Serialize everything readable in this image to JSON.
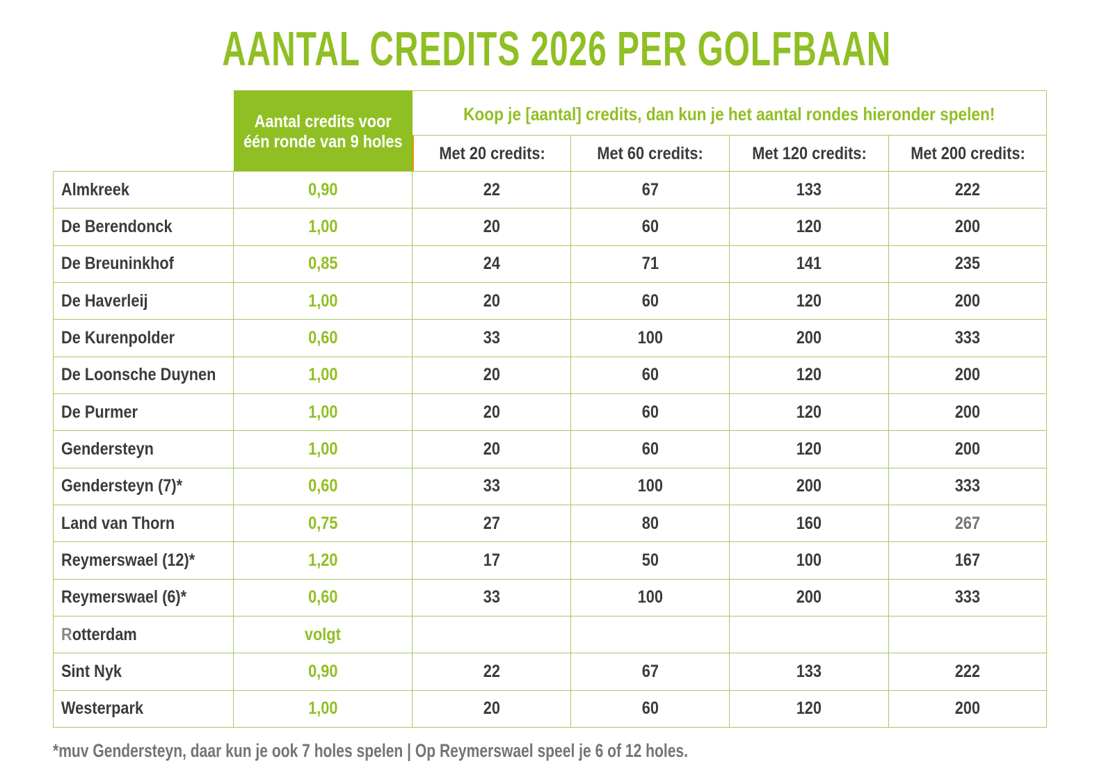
{
  "title": "AANTAL CREDITS 2026 PER GOLFBAAN",
  "colors": {
    "green": "#90BF24",
    "line": "#A6CA62",
    "dark": "#3B3B3A",
    "gray": "#757474",
    "gray_letter": "#878786",
    "gray_note": "#757474",
    "orange": "#F29100",
    "white": "#FFFFFF"
  },
  "table": {
    "credits_header_line1": "Aantal credits voor",
    "credits_header_line2": "één ronde van 9 holes",
    "span_header": "Koop je [aantal] credits, dan kun je het aantal rondes hieronder spelen!",
    "met_headers": [
      "Met 20 credits:",
      "Met 60 credits:",
      "Met 120 credits:",
      "Met 200 credits:"
    ],
    "rows": [
      {
        "name": "Almkreek",
        "credits": "0,90",
        "rounds": [
          "22",
          "67",
          "133",
          "222"
        ]
      },
      {
        "name": "De Berendonck",
        "credits": "1,00",
        "rounds": [
          "20",
          "60",
          "120",
          "200"
        ]
      },
      {
        "name": "De Breuninkhof",
        "credits": "0,85",
        "rounds": [
          "24",
          "71",
          "141",
          "235"
        ]
      },
      {
        "name": "De Haverleij",
        "credits": "1,00",
        "rounds": [
          "20",
          "60",
          "120",
          "200"
        ]
      },
      {
        "name": "De Kurenpolder",
        "credits": "0,60",
        "rounds": [
          "33",
          "100",
          "200",
          "333"
        ]
      },
      {
        "name": "De Loonsche Duynen",
        "credits": "1,00",
        "rounds": [
          "20",
          "60",
          "120",
          "200"
        ]
      },
      {
        "name": "De Purmer",
        "credits": "1,00",
        "rounds": [
          "20",
          "60",
          "120",
          "200"
        ]
      },
      {
        "name": "Gendersteyn",
        "credits": "1,00",
        "rounds": [
          "20",
          "60",
          "120",
          "200"
        ]
      },
      {
        "name": "Gendersteyn (7)*",
        "credits": "0,60",
        "rounds": [
          "33",
          "100",
          "200",
          "333"
        ]
      },
      {
        "name": "Land van Thorn",
        "credits": "0,75",
        "rounds": [
          "27",
          "80",
          "160",
          "267"
        ],
        "gray_rounds": [
          3
        ]
      },
      {
        "name": "Reymerswael (12)*",
        "credits": "1,20",
        "rounds": [
          "17",
          "50",
          "100",
          "167"
        ]
      },
      {
        "name": "Reymerswael (6)*",
        "credits": "0,60",
        "rounds": [
          "33",
          "100",
          "200",
          "333"
        ]
      },
      {
        "name": "Rotterdam",
        "credits": "volgt",
        "rounds": [
          "",
          "",
          "",
          ""
        ],
        "gray_first_letter": true
      },
      {
        "name": "Sint Nyk",
        "credits": "0,90",
        "rounds": [
          "22",
          "67",
          "133",
          "222"
        ]
      },
      {
        "name": "Westerpark",
        "credits": "1,00",
        "rounds": [
          "20",
          "60",
          "120",
          "200"
        ]
      }
    ]
  },
  "footnote": "*muv Gendersteyn, daar kun je ook 7 holes spelen | Op Reymerswael speel je 6 of 12 holes."
}
